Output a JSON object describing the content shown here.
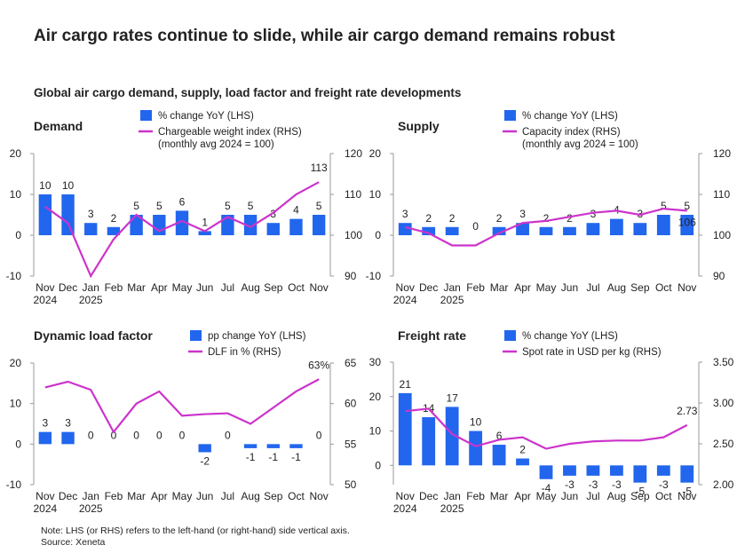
{
  "title": "Air cargo rates continue to slide, while air cargo demand remains robust",
  "subtitle": "Global air cargo demand, supply, load factor and freight rate developments",
  "chart_data": [
    {
      "type": "bar_line",
      "title": "Demand",
      "categories": [
        "Nov\n2024",
        "Dec",
        "Jan\n2025",
        "Feb",
        "Mar",
        "Apr",
        "May",
        "Jun",
        "Jul",
        "Aug",
        "Sep",
        "Oct",
        "Nov"
      ],
      "series": [
        {
          "name": "% change YoY (LHS)",
          "type": "bar",
          "color": "#2266ee",
          "values": [
            10,
            10,
            3,
            2,
            5,
            5,
            6,
            1,
            5,
            5,
            3,
            4,
            5
          ]
        },
        {
          "name": "Chargeable weight index (RHS)\n(monthly avg 2024 = 100)",
          "type": "line",
          "axis": "y2",
          "color": "#cc33cc",
          "label": "last",
          "label_position": "above",
          "values": [
            107,
            103,
            90,
            99,
            105,
            101,
            103.5,
            101,
            104.5,
            102,
            105.5,
            110,
            113
          ]
        }
      ],
      "ylim": [
        -10,
        20
      ],
      "yticks": [
        -10,
        0,
        10,
        20
      ],
      "y2lim": [
        90,
        120
      ],
      "y2ticks": [
        90,
        100,
        110,
        120
      ]
    },
    {
      "type": "bar_line",
      "title": "Supply",
      "categories": [
        "Nov\n2024",
        "Dec",
        "Jan\n2025",
        "Feb",
        "Mar",
        "Apr",
        "May",
        "Jun",
        "Jul",
        "Aug",
        "Sep",
        "Oct",
        "Nov"
      ],
      "series": [
        {
          "name": "% change YoY (LHS)",
          "type": "bar",
          "color": "#2266ee",
          "values": [
            3,
            2,
            2,
            0,
            2,
            3,
            2,
            2,
            3,
            4,
            3,
            5,
            5
          ]
        },
        {
          "name": "Capacity index (RHS)\n(monthly avg 2024 = 100)",
          "type": "line",
          "axis": "y2",
          "color": "#cc33cc",
          "label": "last",
          "label_position": "below",
          "values": [
            102,
            100.5,
            97.5,
            97.5,
            100.5,
            103,
            103.5,
            104.5,
            105.5,
            106,
            105,
            106.5,
            106
          ]
        }
      ],
      "ylim": [
        -10,
        20
      ],
      "yticks": [
        -10,
        0,
        10,
        20
      ],
      "y2lim": [
        90,
        120
      ],
      "y2ticks": [
        90,
        100,
        110,
        120
      ]
    },
    {
      "type": "bar_line",
      "title": "Dynamic load factor",
      "categories": [
        "Nov\n2024",
        "Dec",
        "Jan\n2025",
        "Feb",
        "Mar",
        "Apr",
        "May",
        "Jun",
        "Jul",
        "Aug",
        "Sep",
        "Oct",
        "Nov"
      ],
      "series": [
        {
          "name": "pp change YoY (LHS)",
          "type": "bar",
          "color": "#2266ee",
          "values": [
            3,
            3,
            0,
            0,
            0,
            0,
            0,
            -2,
            0,
            -1,
            -1,
            -1,
            0
          ]
        },
        {
          "name": "DLF in % (RHS)",
          "type": "line",
          "axis": "y2",
          "color": "#cc33cc",
          "label": "last",
          "label_position": "above",
          "values": [
            62,
            62.7,
            61.7,
            56.5,
            60,
            61.5,
            58.5,
            58.7,
            58.8,
            57.5,
            59.5,
            61.5,
            63
          ],
          "value_labels": [
            null,
            null,
            null,
            null,
            null,
            null,
            null,
            null,
            null,
            null,
            null,
            null,
            "63%"
          ]
        }
      ],
      "ylim": [
        -10,
        20
      ],
      "yticks": [
        -10,
        0,
        10,
        20
      ],
      "y2lim": [
        50,
        65
      ],
      "y2ticks": [
        50,
        55,
        60,
        65
      ]
    },
    {
      "type": "bar_line",
      "title": "Freight rate",
      "categories": [
        "Nov\n2024",
        "Dec",
        "Jan\n2025",
        "Feb",
        "Mar",
        "Apr",
        "May",
        "Jun",
        "Jul",
        "Aug",
        "Sep",
        "Oct",
        "Nov"
      ],
      "series": [
        {
          "name": "% change YoY (LHS)",
          "type": "bar",
          "color": "#2266ee",
          "values": [
            21,
            14,
            17,
            10,
            6,
            2,
            -4,
            -3,
            -3,
            -3,
            -5,
            -3,
            -5
          ]
        },
        {
          "name": "Spot rate in USD per kg (RHS)",
          "type": "line",
          "axis": "y2",
          "color": "#cc33cc",
          "label": "last",
          "label_position": "above",
          "values": [
            2.9,
            2.93,
            2.62,
            2.47,
            2.55,
            2.58,
            2.44,
            2.5,
            2.53,
            2.54,
            2.54,
            2.58,
            2.73
          ]
        }
      ],
      "ylim": [
        -5.6,
        30
      ],
      "yticks": [
        0,
        10,
        20,
        30
      ],
      "y2lim": [
        2.0,
        3.5
      ],
      "y2ticks": [
        {
          "value": 2.0,
          "label": "2.00"
        },
        {
          "value": 2.5,
          "label": "2.50"
        },
        {
          "value": 3.0,
          "label": "3.00"
        },
        {
          "value": 3.5,
          "label": "3.50"
        }
      ]
    }
  ],
  "note": "Note: LHS (or RHS) refers to the left-hand (or right-hand) side vertical axis.",
  "source": "Source: Xeneta"
}
